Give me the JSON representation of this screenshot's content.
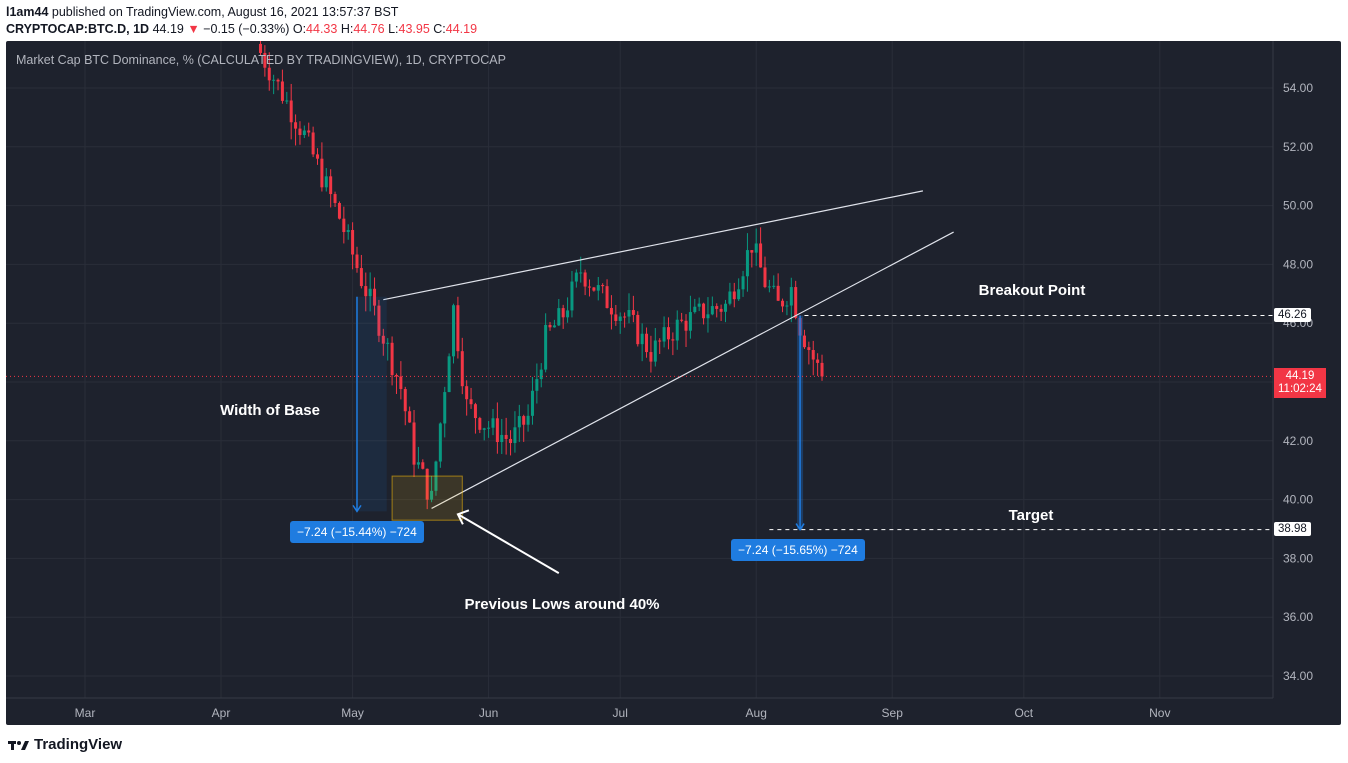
{
  "header": {
    "user": "l1am44",
    "published": "published on TradingView.com, August 16, 2021 13:57:37 BST",
    "symbol": "CRYPTOCAP:BTC.D, 1D",
    "last": "44.19",
    "arrow": "▼",
    "change": "−0.15 (−0.33%)",
    "o_label": "O:",
    "o_val": "44.33",
    "h_label": "H:",
    "h_val": "44.76",
    "l_label": "L:",
    "l_val": "43.95",
    "c_label": "C:",
    "c_val": "44.19"
  },
  "chart_title": "Market Cap BTC Dominance, % (CALCULATED BY TRADINGVIEW), 1D, CRYPTOCAP",
  "chart_data": {
    "type": "candlestick",
    "y_axis": {
      "ticks": [
        "54.00",
        "52.00",
        "50.00",
        "48.00",
        "46.00",
        "44.00",
        "42.00",
        "40.00",
        "38.00",
        "36.00",
        "34.00"
      ],
      "range": [
        33.3,
        55.5
      ]
    },
    "x_axis": {
      "ticks": [
        "Mar",
        "Apr",
        "May",
        "Jun",
        "Jul",
        "Aug",
        "Sep",
        "Oct",
        "Nov"
      ]
    },
    "price_path": [
      [
        "2021-04-10",
        55.2
      ],
      [
        "2021-04-20",
        52.4
      ],
      [
        "2021-04-28",
        49.6
      ],
      [
        "2021-05-03",
        47.5
      ],
      [
        "2021-05-07",
        46.0
      ],
      [
        "2021-05-12",
        43.8
      ],
      [
        "2021-05-15",
        41.5
      ],
      [
        "2021-05-19",
        40.0
      ],
      [
        "2021-05-24",
        46.5
      ],
      [
        "2021-05-27",
        43.2
      ],
      [
        "2021-05-31",
        42.6
      ],
      [
        "2021-06-06",
        42.0
      ],
      [
        "2021-06-10",
        42.8
      ],
      [
        "2021-06-14",
        45.5
      ],
      [
        "2021-06-18",
        46.3
      ],
      [
        "2021-06-22",
        47.8
      ],
      [
        "2021-06-27",
        46.9
      ],
      [
        "2021-07-03",
        46.1
      ],
      [
        "2021-07-08",
        45.0
      ],
      [
        "2021-07-14",
        45.9
      ],
      [
        "2021-07-20",
        46.4
      ],
      [
        "2021-07-25",
        46.6
      ],
      [
        "2021-07-28",
        47.6
      ],
      [
        "2021-07-31",
        48.7
      ],
      [
        "2021-08-03",
        47.4
      ],
      [
        "2021-08-06",
        46.6
      ],
      [
        "2021-08-09",
        47.2
      ],
      [
        "2021-08-11",
        45.9
      ],
      [
        "2021-08-14",
        44.8
      ],
      [
        "2021-08-16",
        44.19
      ]
    ],
    "price_lines": {
      "breakout": 46.26,
      "target": 38.98,
      "last": 44.19
    }
  },
  "annotations": {
    "width_of_base": "Width of Base",
    "breakout_point": "Breakout Point",
    "target": "Target",
    "previous_lows": "Previous Lows around 40%"
  },
  "measures": {
    "left": "−7.24 (−15.44%) −724",
    "right": "−7.24 (−15.65%) −724"
  },
  "price_tags": {
    "breakout": "46.26",
    "target": "38.98",
    "last_price": "44.19",
    "countdown": "11:02:24"
  },
  "footer": {
    "logo_text": "TradingView"
  },
  "colors": {
    "background": "#1e222d",
    "up": "#089981",
    "down": "#f23645",
    "measure": "#1f7ce0"
  }
}
